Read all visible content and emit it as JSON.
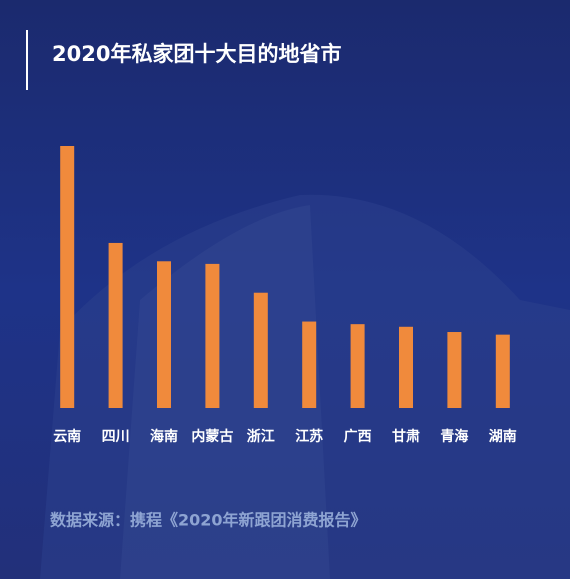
{
  "chart_data": {
    "type": "bar",
    "title": "2020年私家团十大目的地省市",
    "categories": [
      "云南",
      "四川",
      "海南",
      "内蒙古",
      "浙江",
      "江苏",
      "广西",
      "甘肃",
      "青海",
      "湖南"
    ],
    "values": [
      100,
      63,
      56,
      55,
      44,
      33,
      32,
      31,
      29,
      28
    ],
    "color": "#f08a3c",
    "ylim": [
      0,
      100
    ],
    "source": "数据来源：携程《2020年新跟团消费报告》"
  }
}
